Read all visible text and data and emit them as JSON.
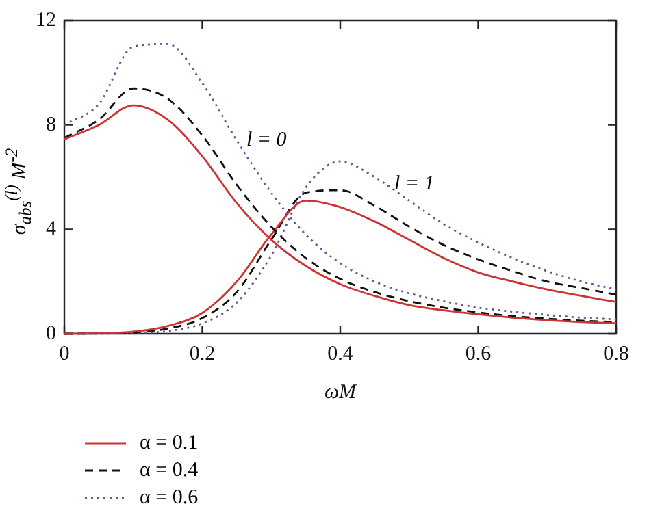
{
  "chart_data": {
    "type": "line",
    "xlabel": "ωM",
    "ylabel": "σ$_{abs}$$^{(l)}$ M$^{-2}$",
    "x": [
      0,
      0.05,
      0.1,
      0.15,
      0.2,
      0.25,
      0.3,
      0.35,
      0.4,
      0.45,
      0.5,
      0.55,
      0.6,
      0.65,
      0.7,
      0.75,
      0.8
    ],
    "xlim": [
      0,
      0.8
    ],
    "xticks": [
      0,
      0.2,
      0.4,
      0.6,
      0.8
    ],
    "ylim": [
      0,
      12
    ],
    "yticks": [
      0,
      4,
      8,
      12
    ],
    "grid": false,
    "legend": "bottom left",
    "marker": "none",
    "annotations": [
      "l = 0",
      "l = 1"
    ],
    "series": [
      {
        "name": "α = 0.1",
        "color": "#cc3333",
        "line_style": "solid",
        "values": [
          7.45,
          8.0,
          8.75,
          8.2,
          6.8,
          5.0,
          3.6,
          2.6,
          1.9,
          1.45,
          1.1,
          0.9,
          0.75,
          0.62,
          0.52,
          0.45,
          0.4
        ]
      },
      {
        "name": "α = 0.4",
        "color": "#111111",
        "line_style": "dashed",
        "values": [
          7.5,
          8.2,
          9.4,
          9.0,
          7.6,
          5.7,
          4.1,
          2.9,
          2.1,
          1.6,
          1.25,
          1.0,
          0.82,
          0.68,
          0.58,
          0.5,
          0.45
        ]
      },
      {
        "name": "α = 0.6",
        "color": "#5a5a9a",
        "line_style": "dotted",
        "values": [
          8.0,
          8.8,
          11.0,
          11.1,
          9.6,
          7.4,
          5.4,
          3.8,
          2.7,
          2.0,
          1.55,
          1.25,
          1.0,
          0.85,
          0.72,
          0.62,
          0.55
        ]
      },
      {
        "color": "#cc3333",
        "line_style": "solid",
        "values": [
          0,
          0.02,
          0.08,
          0.3,
          0.8,
          2.0,
          3.8,
          5.1,
          4.85,
          4.3,
          3.6,
          2.9,
          2.35,
          2.0,
          1.7,
          1.45,
          1.22
        ]
      },
      {
        "color": "#111111",
        "line_style": "dashed",
        "values": [
          0,
          0.01,
          0.05,
          0.2,
          0.6,
          1.6,
          3.6,
          5.4,
          5.5,
          4.9,
          4.1,
          3.4,
          2.85,
          2.4,
          2.0,
          1.75,
          1.5
        ]
      },
      {
        "color": "#5a5a9a",
        "line_style": "dotted",
        "values": [
          0,
          0,
          0.03,
          0.1,
          0.4,
          1.2,
          3.0,
          5.6,
          6.6,
          6.0,
          5.1,
          4.2,
          3.5,
          2.9,
          2.4,
          2.0,
          1.7
        ]
      }
    ]
  }
}
